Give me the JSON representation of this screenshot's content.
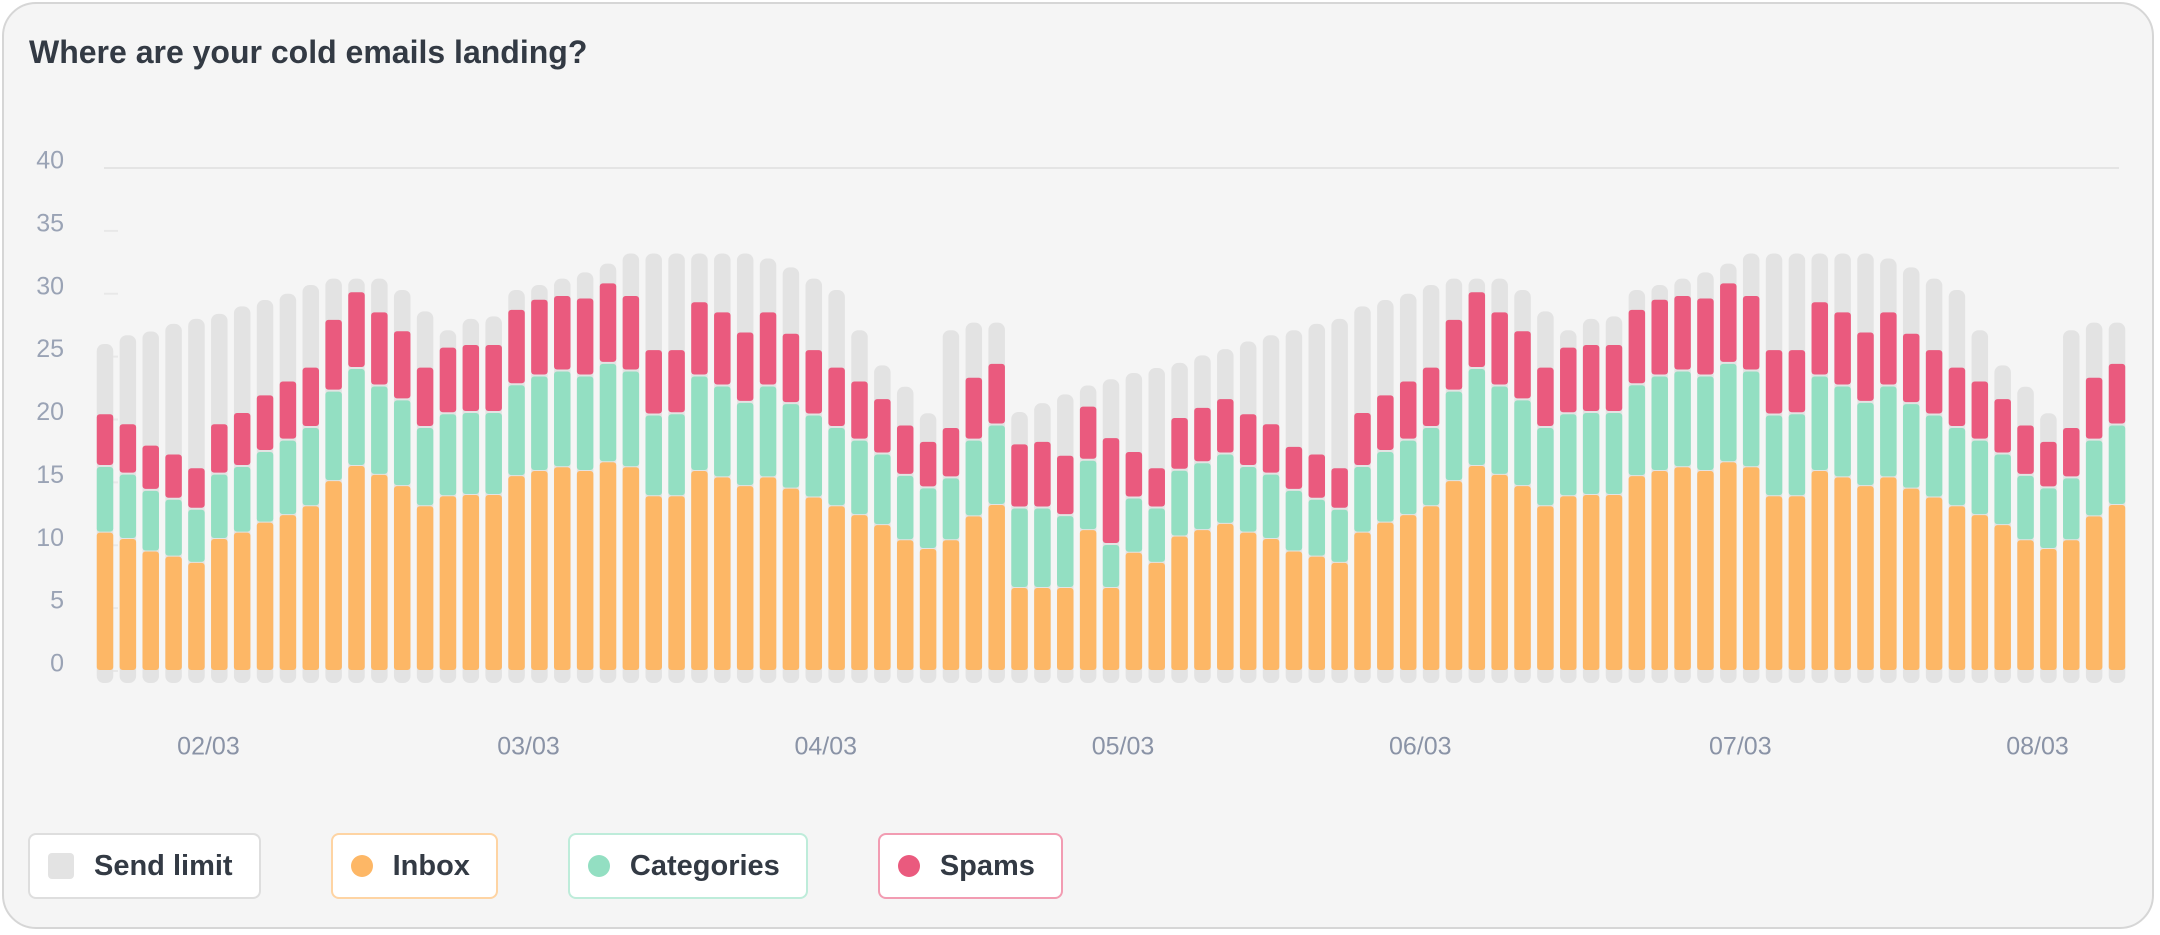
{
  "chart_data": {
    "type": "bar",
    "title": "Where are your cold emails landing?",
    "categories": [
      null,
      null,
      null,
      null,
      "02/03",
      null,
      null,
      null,
      null,
      null,
      null,
      null,
      null,
      null,
      null,
      null,
      null,
      null,
      "03/03",
      null,
      null,
      null,
      null,
      null,
      null,
      null,
      null,
      null,
      null,
      null,
      null,
      "04/03",
      null,
      null,
      null,
      null,
      null,
      null,
      null,
      null,
      null,
      null,
      null,
      null,
      "05/03",
      null,
      null,
      null,
      null,
      null,
      null,
      null,
      null,
      null,
      null,
      null,
      null,
      "06/03",
      null,
      null,
      null,
      null,
      null,
      null,
      null,
      null,
      null,
      null,
      null,
      null,
      null,
      "07/03",
      null,
      null,
      null,
      null,
      null,
      null,
      null,
      null,
      null,
      null,
      null,
      null,
      "08/03",
      null,
      null,
      null,
      null
    ],
    "limit_series": {
      "name": "Send limit",
      "color": "#e3e3e3",
      "values": [
        26,
        26.7,
        27,
        27.6,
        28,
        28.4,
        29,
        29.5,
        30,
        30.7,
        31.2,
        31.2,
        31.2,
        30.3,
        28.6,
        27.1,
        28,
        28.2,
        30.3,
        30.7,
        31.2,
        31.7,
        32.4,
        33.2,
        33.2,
        33.2,
        33.2,
        33.2,
        33.2,
        32.8,
        32.1,
        31.2,
        30.3,
        27.1,
        24.3,
        22.6,
        20.5,
        27.1,
        27.7,
        27.7,
        20.6,
        21.3,
        22,
        22.7,
        23.2,
        23.7,
        24.1,
        24.5,
        25.1,
        25.6,
        26.2,
        26.7,
        27.1,
        27.6,
        28,
        29,
        29.5,
        30,
        30.7,
        31.2,
        31.2,
        31.2,
        30.3,
        28.6,
        27.1,
        28,
        28.2,
        30.3,
        30.7,
        31.2,
        31.7,
        32.4,
        33.2,
        33.2,
        33.2,
        33.2,
        33.2,
        33.2,
        32.8,
        32.1,
        31.2,
        30.3,
        27.1,
        24.3,
        22.6,
        20.5,
        27.1,
        27.7,
        27.7
      ]
    },
    "series": [
      {
        "name": "Inbox",
        "color": "#fdb766",
        "values": [
          11,
          10.5,
          9.5,
          9.1,
          8.6,
          10.5,
          11,
          11.8,
          12.4,
          13.1,
          15.1,
          16.3,
          15.6,
          14.7,
          13.1,
          13.9,
          14,
          14,
          15.5,
          15.9,
          16.2,
          15.9,
          16.6,
          16.2,
          13.9,
          13.9,
          15.9,
          15.4,
          14.7,
          15.4,
          14.5,
          13.8,
          13.1,
          12.4,
          11.6,
          10.4,
          9.7,
          10.4,
          12.3,
          13.2,
          6.6,
          6.6,
          6.6,
          11.2,
          6.6,
          9.4,
          8.6,
          10.7,
          11.2,
          11.7,
          11,
          10.5,
          9.5,
          9.1,
          8.6,
          11,
          11.8,
          12.4,
          13.1,
          15.1,
          16.3,
          15.6,
          14.7,
          13.1,
          13.9,
          14,
          14,
          15.5,
          15.9,
          16.2,
          15.9,
          16.6,
          16.2,
          13.9,
          13.9,
          15.9,
          15.4,
          14.7,
          15.4,
          14.5,
          13.8,
          13.1,
          12.4,
          11.6,
          10.4,
          9.7,
          10.4,
          12.3,
          13.2
        ]
      },
      {
        "name": "Categories",
        "color": "#93dfc2",
        "values": [
          5.3,
          5.2,
          4.9,
          4.6,
          4.3,
          5.2,
          5.3,
          5.7,
          6,
          6.3,
          7.2,
          7.8,
          7.1,
          6.9,
          6.3,
          6.6,
          6.6,
          6.6,
          7.3,
          7.6,
          7.7,
          7.6,
          7.9,
          7.7,
          6.5,
          6.6,
          7.6,
          7.3,
          6.7,
          7.3,
          6.8,
          6.6,
          6.3,
          6,
          5.7,
          5.2,
          4.9,
          5,
          6.1,
          6.4,
          6.4,
          6.4,
          5.8,
          5.6,
          3.5,
          4.4,
          4.4,
          5.3,
          5.4,
          5.6,
          5.3,
          5.2,
          4.9,
          4.6,
          4.3,
          5.3,
          5.7,
          6,
          6.3,
          7.2,
          7.8,
          7.1,
          6.9,
          6.3,
          6.6,
          6.6,
          6.6,
          7.3,
          7.6,
          7.7,
          7.6,
          7.9,
          7.7,
          6.5,
          6.6,
          7.6,
          7.3,
          6.7,
          7.3,
          6.8,
          6.6,
          6.3,
          6,
          5.7,
          5.2,
          4.9,
          5,
          6.1,
          6.4
        ]
      },
      {
        "name": "Spams",
        "color": "#ea5a7e",
        "values": [
          4.2,
          4,
          3.6,
          3.6,
          3.3,
          4,
          4.3,
          4.5,
          4.7,
          4.8,
          5.7,
          6.1,
          5.9,
          5.5,
          4.8,
          5.3,
          5.4,
          5.4,
          6,
          6.1,
          6,
          6.2,
          6.4,
          6,
          5.2,
          5.1,
          5.9,
          5.9,
          5.6,
          5.9,
          5.6,
          5.2,
          4.8,
          4.7,
          4.4,
          4,
          3.7,
          4,
          5,
          4.9,
          5.1,
          5.3,
          4.8,
          4.3,
          8.5,
          3.7,
          3.2,
          4.2,
          4.4,
          4.4,
          4.2,
          4,
          3.5,
          3.6,
          3.3,
          4.3,
          4.5,
          4.7,
          4.8,
          5.7,
          6.1,
          5.9,
          5.5,
          4.8,
          5.3,
          5.4,
          5.4,
          6,
          6.1,
          6,
          6.2,
          6.4,
          6,
          5.2,
          5.1,
          5.9,
          5.9,
          5.6,
          5.9,
          5.6,
          5.2,
          4.8,
          4.7,
          4.4,
          4,
          3.7,
          4,
          5,
          4.9
        ]
      }
    ],
    "stacked": true,
    "ylim": [
      0,
      40
    ],
    "yticks": [
      0,
      5,
      10,
      15,
      20,
      25,
      30,
      35,
      40
    ]
  }
}
